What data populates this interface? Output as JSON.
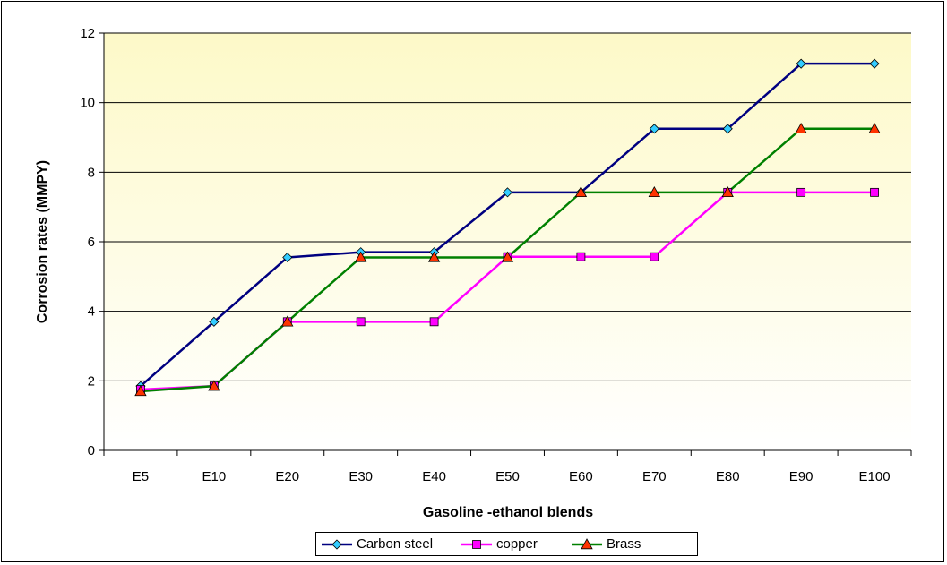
{
  "chart_data": {
    "type": "line",
    "categories": [
      "E5",
      "E10",
      "E20",
      "E30",
      "E40",
      "E50",
      "E60",
      "E70",
      "E80",
      "E90",
      "E100"
    ],
    "series": [
      {
        "name": "Carbon steel",
        "color": "#000080",
        "marker": "diamond",
        "marker_color": "#33ccff",
        "values": [
          1.85,
          3.7,
          5.55,
          5.7,
          5.7,
          7.42,
          7.42,
          9.25,
          9.25,
          11.12,
          11.12
        ]
      },
      {
        "name": "copper",
        "color": "#ff00ff",
        "marker": "square",
        "marker_color": "#ff00ff",
        "values": [
          1.75,
          1.85,
          3.7,
          3.7,
          3.7,
          5.57,
          5.57,
          5.57,
          7.42,
          7.42,
          7.42
        ]
      },
      {
        "name": "Brass",
        "color": "#008000",
        "marker": "triangle",
        "marker_color": "#ff3300",
        "values": [
          1.7,
          1.85,
          3.7,
          5.55,
          5.55,
          5.55,
          7.42,
          7.42,
          7.42,
          9.25,
          9.25
        ]
      }
    ],
    "title": "",
    "xlabel": "Gasoline -ethanol blends",
    "ylabel": "Corrosion rates (MMPY)",
    "ylim": [
      0,
      12
    ],
    "yticks": [
      0,
      2,
      4,
      6,
      8,
      10,
      12
    ],
    "grid": "horizontal",
    "legend_position": "bottom",
    "plot_background": [
      "#fdf9c8",
      "#ffffff"
    ]
  }
}
